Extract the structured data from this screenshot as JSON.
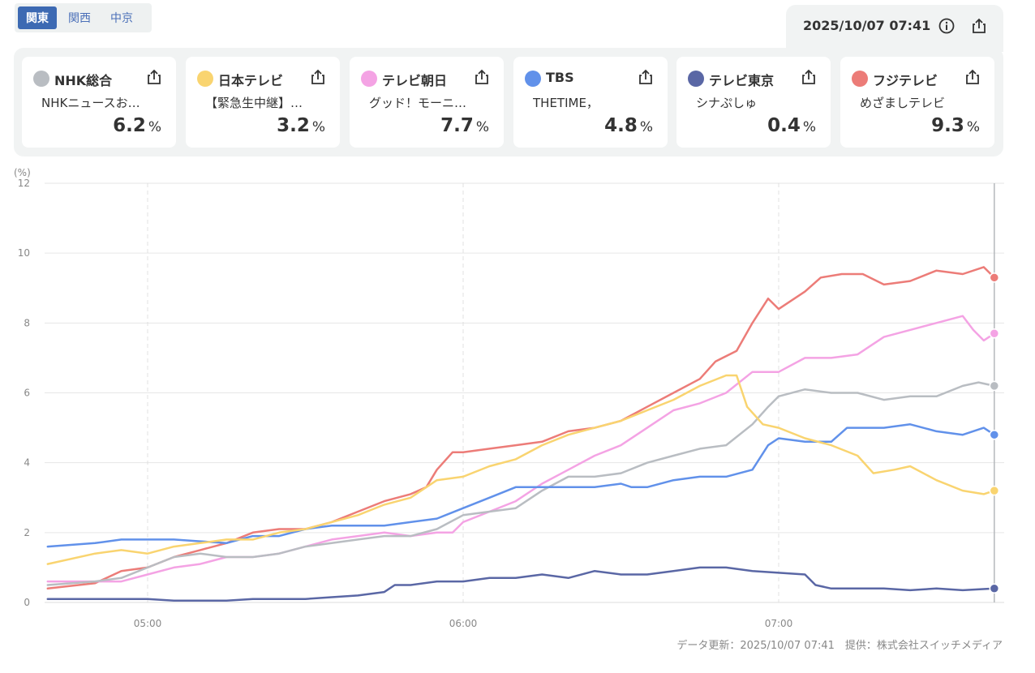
{
  "regions": [
    {
      "label": "関東",
      "active": true
    },
    {
      "label": "関西",
      "active": false
    },
    {
      "label": "中京",
      "active": false
    }
  ],
  "header": {
    "timestamp": "2025/10/07 07:41",
    "info_icon": "info-icon",
    "share_icon": "share-icon"
  },
  "channels": [
    {
      "name": "NHK総合",
      "program": "NHKニュースお…",
      "rating": "6.2",
      "unit": "%",
      "color": "#b9bdc2"
    },
    {
      "name": "日本テレビ",
      "program": "【緊急生中継】…",
      "rating": "3.2",
      "unit": "%",
      "color": "#f9d470"
    },
    {
      "name": "テレビ朝日",
      "program": "グッド！モーニ…",
      "rating": "7.7",
      "unit": "%",
      "color": "#f4a3e4"
    },
    {
      "name": "TBS",
      "program": "THETIME，",
      "rating": "4.8",
      "unit": "%",
      "color": "#6191ea"
    },
    {
      "name": "テレビ東京",
      "program": "シナぷしゅ",
      "rating": "0.4",
      "unit": "%",
      "color": "#5a67a5"
    },
    {
      "name": "フジテレビ",
      "program": "めざましテレビ",
      "rating": "9.3",
      "unit": "%",
      "color": "#ec7c78"
    }
  ],
  "footer": {
    "text": "データ更新：2025/10/07 07:41　提供：株式会社スイッチメディア"
  },
  "chart_data": {
    "type": "line",
    "ylabel": "(%)",
    "ylim": [
      0,
      12
    ],
    "yticks": [
      "0",
      "2",
      "4",
      "6",
      "8",
      "10",
      "12"
    ],
    "xlim": [
      "04:41",
      "07:41"
    ],
    "xticks": [
      "05:00",
      "06:00",
      "07:00"
    ],
    "grid": true,
    "x_unit": "time (HH:MM)",
    "series": [
      {
        "name": "フジテレビ",
        "color": "#ec7c78",
        "points": [
          [
            "04:41",
            0.4
          ],
          [
            "04:50",
            0.55
          ],
          [
            "04:55",
            0.9
          ],
          [
            "05:00",
            1.0
          ],
          [
            "05:05",
            1.3
          ],
          [
            "05:10",
            1.5
          ],
          [
            "05:15",
            1.7
          ],
          [
            "05:20",
            2.0
          ],
          [
            "05:25",
            2.1
          ],
          [
            "05:30",
            2.1
          ],
          [
            "05:35",
            2.3
          ],
          [
            "05:40",
            2.6
          ],
          [
            "05:45",
            2.9
          ],
          [
            "05:50",
            3.1
          ],
          [
            "05:53",
            3.3
          ],
          [
            "05:55",
            3.8
          ],
          [
            "05:58",
            4.3
          ],
          [
            "06:00",
            4.3
          ],
          [
            "06:05",
            4.4
          ],
          [
            "06:10",
            4.5
          ],
          [
            "06:15",
            4.6
          ],
          [
            "06:20",
            4.9
          ],
          [
            "06:25",
            5.0
          ],
          [
            "06:30",
            5.2
          ],
          [
            "06:35",
            5.6
          ],
          [
            "06:40",
            6.0
          ],
          [
            "06:45",
            6.4
          ],
          [
            "06:48",
            6.9
          ],
          [
            "06:52",
            7.2
          ],
          [
            "06:55",
            8.0
          ],
          [
            "06:58",
            8.7
          ],
          [
            "07:00",
            8.4
          ],
          [
            "07:05",
            8.9
          ],
          [
            "07:08",
            9.3
          ],
          [
            "07:12",
            9.4
          ],
          [
            "07:16",
            9.4
          ],
          [
            "07:20",
            9.1
          ],
          [
            "07:25",
            9.2
          ],
          [
            "07:30",
            9.5
          ],
          [
            "07:35",
            9.4
          ],
          [
            "07:39",
            9.6
          ],
          [
            "07:41",
            9.3
          ]
        ]
      },
      {
        "name": "テレビ朝日",
        "color": "#f4a3e4",
        "points": [
          [
            "04:41",
            0.6
          ],
          [
            "04:50",
            0.6
          ],
          [
            "04:55",
            0.6
          ],
          [
            "05:00",
            0.8
          ],
          [
            "05:05",
            1.0
          ],
          [
            "05:10",
            1.1
          ],
          [
            "05:15",
            1.3
          ],
          [
            "05:20",
            1.3
          ],
          [
            "05:25",
            1.4
          ],
          [
            "05:30",
            1.6
          ],
          [
            "05:35",
            1.8
          ],
          [
            "05:40",
            1.9
          ],
          [
            "05:45",
            2.0
          ],
          [
            "05:50",
            1.9
          ],
          [
            "05:55",
            2.0
          ],
          [
            "05:58",
            2.0
          ],
          [
            "06:00",
            2.3
          ],
          [
            "06:05",
            2.6
          ],
          [
            "06:10",
            2.9
          ],
          [
            "06:15",
            3.4
          ],
          [
            "06:20",
            3.8
          ],
          [
            "06:25",
            4.2
          ],
          [
            "06:30",
            4.5
          ],
          [
            "06:35",
            5.0
          ],
          [
            "06:40",
            5.5
          ],
          [
            "06:45",
            5.7
          ],
          [
            "06:50",
            6.0
          ],
          [
            "06:55",
            6.6
          ],
          [
            "07:00",
            6.6
          ],
          [
            "07:05",
            7.0
          ],
          [
            "07:10",
            7.0
          ],
          [
            "07:15",
            7.1
          ],
          [
            "07:20",
            7.6
          ],
          [
            "07:25",
            7.8
          ],
          [
            "07:30",
            8.0
          ],
          [
            "07:35",
            8.2
          ],
          [
            "07:37",
            7.8
          ],
          [
            "07:39",
            7.5
          ],
          [
            "07:41",
            7.7
          ]
        ]
      },
      {
        "name": "NHK総合",
        "color": "#b9bdc2",
        "points": [
          [
            "04:41",
            0.5
          ],
          [
            "04:50",
            0.6
          ],
          [
            "04:55",
            0.7
          ],
          [
            "05:00",
            1.0
          ],
          [
            "05:05",
            1.3
          ],
          [
            "05:10",
            1.4
          ],
          [
            "05:15",
            1.3
          ],
          [
            "05:20",
            1.3
          ],
          [
            "05:25",
            1.4
          ],
          [
            "05:30",
            1.6
          ],
          [
            "05:35",
            1.7
          ],
          [
            "05:40",
            1.8
          ],
          [
            "05:45",
            1.9
          ],
          [
            "05:50",
            1.9
          ],
          [
            "05:55",
            2.1
          ],
          [
            "06:00",
            2.5
          ],
          [
            "06:05",
            2.6
          ],
          [
            "06:10",
            2.7
          ],
          [
            "06:15",
            3.2
          ],
          [
            "06:20",
            3.6
          ],
          [
            "06:25",
            3.6
          ],
          [
            "06:30",
            3.7
          ],
          [
            "06:35",
            4.0
          ],
          [
            "06:40",
            4.2
          ],
          [
            "06:45",
            4.4
          ],
          [
            "06:50",
            4.5
          ],
          [
            "06:55",
            5.1
          ],
          [
            "06:58",
            5.6
          ],
          [
            "07:00",
            5.9
          ],
          [
            "07:05",
            6.1
          ],
          [
            "07:10",
            6.0
          ],
          [
            "07:15",
            6.0
          ],
          [
            "07:20",
            5.8
          ],
          [
            "07:25",
            5.9
          ],
          [
            "07:30",
            5.9
          ],
          [
            "07:35",
            6.2
          ],
          [
            "07:38",
            6.3
          ],
          [
            "07:41",
            6.2
          ]
        ]
      },
      {
        "name": "TBS",
        "color": "#6191ea",
        "points": [
          [
            "04:41",
            1.6
          ],
          [
            "04:50",
            1.7
          ],
          [
            "04:55",
            1.8
          ],
          [
            "05:00",
            1.8
          ],
          [
            "05:05",
            1.8
          ],
          [
            "05:10",
            1.75
          ],
          [
            "05:15",
            1.7
          ],
          [
            "05:20",
            1.9
          ],
          [
            "05:25",
            1.9
          ],
          [
            "05:30",
            2.1
          ],
          [
            "05:35",
            2.2
          ],
          [
            "05:40",
            2.2
          ],
          [
            "05:45",
            2.2
          ],
          [
            "05:50",
            2.3
          ],
          [
            "05:55",
            2.4
          ],
          [
            "06:00",
            2.7
          ],
          [
            "06:05",
            3.0
          ],
          [
            "06:10",
            3.3
          ],
          [
            "06:15",
            3.3
          ],
          [
            "06:20",
            3.3
          ],
          [
            "06:25",
            3.3
          ],
          [
            "06:30",
            3.4
          ],
          [
            "06:32",
            3.3
          ],
          [
            "06:35",
            3.3
          ],
          [
            "06:40",
            3.5
          ],
          [
            "06:45",
            3.6
          ],
          [
            "06:50",
            3.6
          ],
          [
            "06:55",
            3.8
          ],
          [
            "06:58",
            4.5
          ],
          [
            "07:00",
            4.7
          ],
          [
            "07:05",
            4.6
          ],
          [
            "07:10",
            4.6
          ],
          [
            "07:13",
            5.0
          ],
          [
            "07:15",
            5.0
          ],
          [
            "07:20",
            5.0
          ],
          [
            "07:25",
            5.1
          ],
          [
            "07:30",
            4.9
          ],
          [
            "07:35",
            4.8
          ],
          [
            "07:39",
            5.0
          ],
          [
            "07:41",
            4.8
          ]
        ]
      },
      {
        "name": "日本テレビ",
        "color": "#f9d470",
        "points": [
          [
            "04:41",
            1.1
          ],
          [
            "04:50",
            1.4
          ],
          [
            "04:55",
            1.5
          ],
          [
            "05:00",
            1.4
          ],
          [
            "05:05",
            1.6
          ],
          [
            "05:10",
            1.7
          ],
          [
            "05:15",
            1.8
          ],
          [
            "05:20",
            1.8
          ],
          [
            "05:25",
            2.0
          ],
          [
            "05:30",
            2.1
          ],
          [
            "05:35",
            2.3
          ],
          [
            "05:40",
            2.5
          ],
          [
            "05:45",
            2.8
          ],
          [
            "05:50",
            3.0
          ],
          [
            "05:55",
            3.5
          ],
          [
            "06:00",
            3.6
          ],
          [
            "06:05",
            3.9
          ],
          [
            "06:10",
            4.1
          ],
          [
            "06:15",
            4.5
          ],
          [
            "06:20",
            4.8
          ],
          [
            "06:25",
            5.0
          ],
          [
            "06:30",
            5.2
          ],
          [
            "06:35",
            5.5
          ],
          [
            "06:40",
            5.8
          ],
          [
            "06:45",
            6.2
          ],
          [
            "06:50",
            6.5
          ],
          [
            "06:52",
            6.5
          ],
          [
            "06:54",
            5.6
          ],
          [
            "06:57",
            5.1
          ],
          [
            "07:00",
            5.0
          ],
          [
            "07:05",
            4.7
          ],
          [
            "07:10",
            4.5
          ],
          [
            "07:15",
            4.2
          ],
          [
            "07:18",
            3.7
          ],
          [
            "07:22",
            3.8
          ],
          [
            "07:25",
            3.9
          ],
          [
            "07:30",
            3.5
          ],
          [
            "07:35",
            3.2
          ],
          [
            "07:39",
            3.1
          ],
          [
            "07:41",
            3.2
          ]
        ]
      },
      {
        "name": "テレビ東京",
        "color": "#5a67a5",
        "points": [
          [
            "04:41",
            0.1
          ],
          [
            "04:50",
            0.1
          ],
          [
            "04:55",
            0.1
          ],
          [
            "05:00",
            0.1
          ],
          [
            "05:05",
            0.05
          ],
          [
            "05:10",
            0.05
          ],
          [
            "05:15",
            0.05
          ],
          [
            "05:20",
            0.1
          ],
          [
            "05:25",
            0.1
          ],
          [
            "05:30",
            0.1
          ],
          [
            "05:35",
            0.15
          ],
          [
            "05:40",
            0.2
          ],
          [
            "05:45",
            0.3
          ],
          [
            "05:47",
            0.5
          ],
          [
            "05:50",
            0.5
          ],
          [
            "05:55",
            0.6
          ],
          [
            "06:00",
            0.6
          ],
          [
            "06:05",
            0.7
          ],
          [
            "06:10",
            0.7
          ],
          [
            "06:15",
            0.8
          ],
          [
            "06:20",
            0.7
          ],
          [
            "06:25",
            0.9
          ],
          [
            "06:30",
            0.8
          ],
          [
            "06:35",
            0.8
          ],
          [
            "06:40",
            0.9
          ],
          [
            "06:45",
            1.0
          ],
          [
            "06:50",
            1.0
          ],
          [
            "06:55",
            0.9
          ],
          [
            "07:00",
            0.85
          ],
          [
            "07:05",
            0.8
          ],
          [
            "07:07",
            0.5
          ],
          [
            "07:10",
            0.4
          ],
          [
            "07:15",
            0.4
          ],
          [
            "07:20",
            0.4
          ],
          [
            "07:25",
            0.35
          ],
          [
            "07:30",
            0.4
          ],
          [
            "07:35",
            0.35
          ],
          [
            "07:41",
            0.4
          ]
        ]
      }
    ]
  }
}
